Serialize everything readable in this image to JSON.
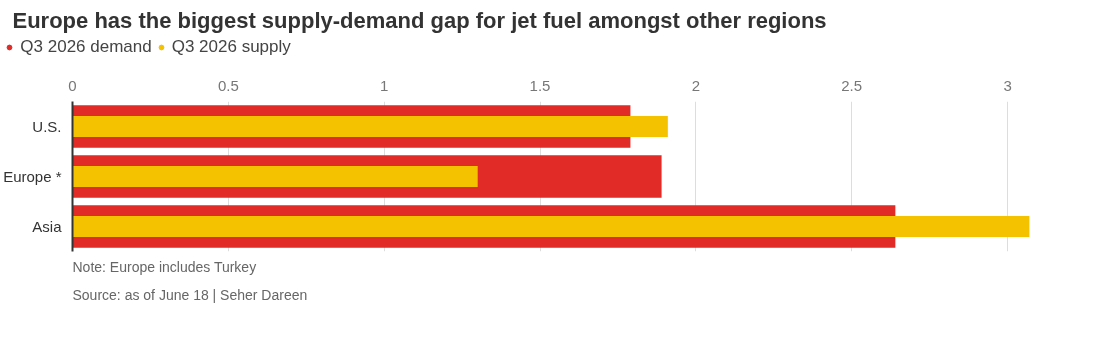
{
  "chart_data": {
    "type": "bar",
    "orientation": "horizontal",
    "title": "Europe has the biggest supply-demand gap for jet fuel amongst other regions",
    "categories": [
      "U.S.",
      "Europe *",
      "Asia"
    ],
    "series": [
      {
        "name": "Q3 2026 demand",
        "color": "#e02b27",
        "values": [
          1.79,
          1.89,
          2.64
        ]
      },
      {
        "name": "Q3 2026 supply",
        "color": "#f5c200",
        "values": [
          1.91,
          1.3,
          3.07
        ]
      }
    ],
    "xlim": [
      0,
      3.08
    ],
    "xticks": [
      0,
      0.5,
      1,
      1.5,
      2,
      2.5,
      3
    ],
    "grid": "x",
    "legend": "top left",
    "annotations": [
      "Note: Europe includes Turkey",
      "Source: as of June 18 | Seher Dareen"
    ]
  }
}
